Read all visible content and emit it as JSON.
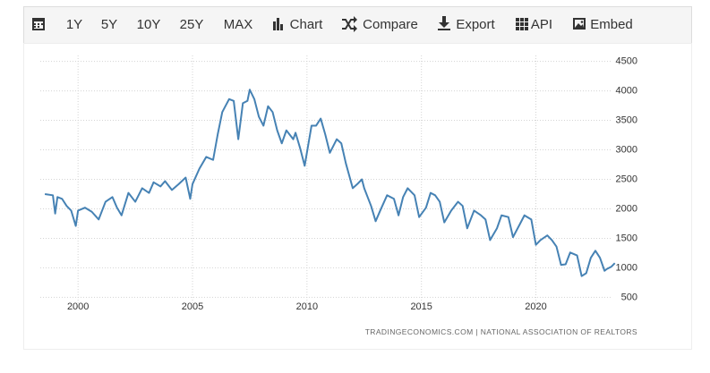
{
  "toolbar": [
    "1Y",
    "5Y",
    "10Y",
    "25Y",
    "MAX",
    "Chart",
    "Compare",
    "Export",
    "API",
    "Embed"
  ],
  "chart_data": {
    "type": "line",
    "source": "TRADINGECONOMICS.COM  |  NATIONAL ASSOCIATION OF REALTORS",
    "color": "#4682b4",
    "xlim": [
      1998.35,
      2023.5
    ],
    "xticks": [
      2000,
      2005,
      2010,
      2015,
      2020
    ],
    "ylim": [
      400,
      4600
    ],
    "yticks": [
      500,
      1000,
      1500,
      2000,
      2500,
      3000,
      3500,
      4000,
      4500
    ],
    "grid": true,
    "x": [
      1998.55,
      1998.9,
      1999.0,
      1999.1,
      1999.3,
      1999.5,
      1999.7,
      1999.9,
      2000.0,
      2000.3,
      2000.6,
      2000.9,
      2001.2,
      2001.5,
      2001.7,
      2001.9,
      2002.2,
      2002.5,
      2002.8,
      2003.1,
      2003.3,
      2003.6,
      2003.8,
      2004.1,
      2004.4,
      2004.7,
      2004.9,
      2005.0,
      2005.3,
      2005.6,
      2005.9,
      2006.1,
      2006.3,
      2006.6,
      2006.8,
      2007.0,
      2007.2,
      2007.4,
      2007.5,
      2007.7,
      2007.9,
      2008.1,
      2008.3,
      2008.5,
      2008.7,
      2008.9,
      2009.1,
      2009.4,
      2009.5,
      2009.7,
      2009.9,
      2010.2,
      2010.4,
      2010.6,
      2010.8,
      2011.0,
      2011.3,
      2011.5,
      2011.7,
      2012.0,
      2012.2,
      2012.4,
      2012.5,
      2012.8,
      2013.0,
      2013.2,
      2013.5,
      2013.8,
      2014.0,
      2014.2,
      2014.4,
      2014.7,
      2014.9,
      2015.2,
      2015.4,
      2015.6,
      2015.8,
      2016.0,
      2016.3,
      2016.6,
      2016.8,
      2017.0,
      2017.3,
      2017.6,
      2017.8,
      2018.0,
      2018.3,
      2018.5,
      2018.8,
      2019.0,
      2019.3,
      2019.5,
      2019.8,
      2020.0,
      2020.2,
      2020.5,
      2020.7,
      2020.9,
      2021.1,
      2021.3,
      2021.5,
      2021.8,
      2022.0,
      2022.2,
      2022.4,
      2022.6,
      2022.8,
      2023.0,
      2023.1,
      2023.3,
      2023.45
    ],
    "values": [
      2250,
      2230,
      1920,
      2200,
      2170,
      2050,
      1970,
      1710,
      1970,
      2020,
      1950,
      1820,
      2120,
      2200,
      2020,
      1890,
      2270,
      2120,
      2350,
      2270,
      2450,
      2380,
      2470,
      2320,
      2420,
      2530,
      2170,
      2420,
      2680,
      2880,
      2830,
      3260,
      3640,
      3860,
      3830,
      3180,
      3790,
      3830,
      4020,
      3860,
      3560,
      3410,
      3740,
      3640,
      3330,
      3110,
      3330,
      3180,
      3290,
      3030,
      2730,
      3410,
      3410,
      3530,
      3260,
      2950,
      3180,
      3110,
      2770,
      2350,
      2420,
      2500,
      2350,
      2050,
      1790,
      1970,
      2230,
      2170,
      1890,
      2200,
      2350,
      2230,
      1860,
      2020,
      2270,
      2230,
      2120,
      1770,
      1970,
      2120,
      2050,
      1670,
      1970,
      1890,
      1820,
      1470,
      1670,
      1890,
      1860,
      1520,
      1740,
      1890,
      1820,
      1390,
      1470,
      1550,
      1470,
      1360,
      1050,
      1060,
      1260,
      1210,
      860,
      910,
      1170,
      1290,
      1170,
      950,
      980,
      1020,
      1080
    ]
  }
}
